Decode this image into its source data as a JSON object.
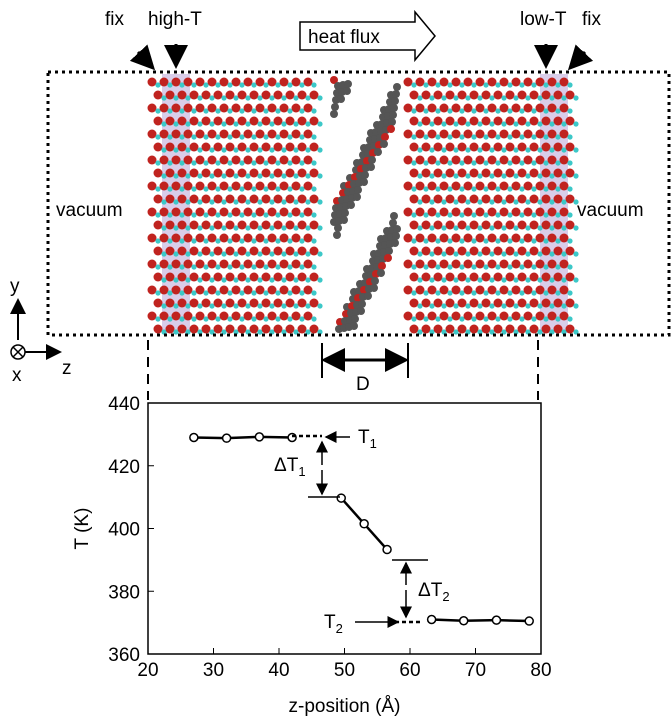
{
  "diagram": {
    "labels": {
      "fix_left": "fix",
      "high_t": "high-T",
      "heat_flux": "heat flux",
      "low_t": "low-T",
      "fix_right": "fix",
      "vacuum_left": "vacuum",
      "vacuum_right": "vacuum",
      "axis_y": "y",
      "axis_x": "x",
      "axis_z": "z",
      "gap": "D"
    }
  },
  "chart_data": {
    "type": "line",
    "x_label": "z-position (Å)",
    "y_label": "T (K)",
    "xlim": [
      20,
      80
    ],
    "ylim": [
      360,
      440
    ],
    "xticks": [
      20,
      30,
      40,
      50,
      60,
      70,
      80
    ],
    "yticks": [
      360,
      380,
      400,
      420,
      440
    ],
    "series": [
      {
        "color": "#000000",
        "x": [
          27,
          32,
          37,
          42
        ],
        "values": [
          429,
          428.8,
          429.2,
          429
        ]
      },
      {
        "color": "#000000",
        "x": [
          49.5,
          53,
          56.5
        ],
        "values": [
          409.7,
          401.5,
          393.3
        ]
      },
      {
        "color": "#000000",
        "x": [
          63.3,
          68.2,
          73.2,
          78.2
        ],
        "values": [
          371,
          370.6,
          370.8,
          370.5
        ]
      }
    ],
    "annotations": [
      {
        "text": "T",
        "sub": "1"
      },
      {
        "text": "ΔT",
        "sub": "1"
      },
      {
        "text": "ΔT",
        "sub": "2"
      },
      {
        "text": "T",
        "sub": "2"
      }
    ]
  }
}
